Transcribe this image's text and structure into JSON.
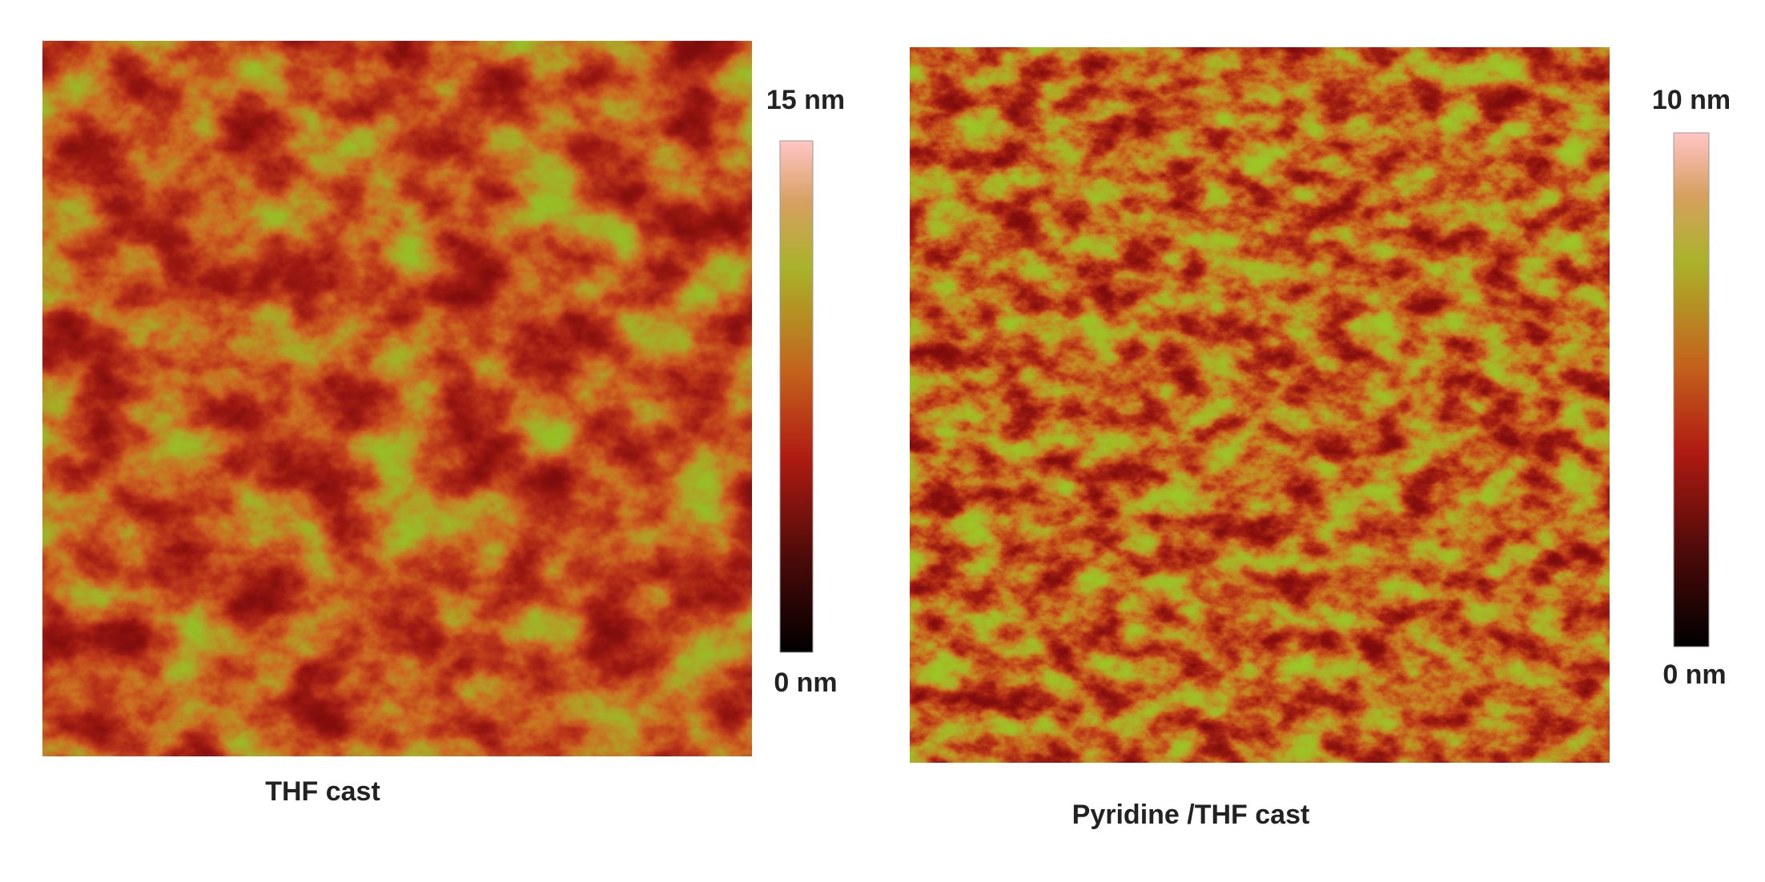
{
  "panels": [
    {
      "scale_max": "15 nm",
      "scale_min": "0 nm",
      "caption": "THF cast"
    },
    {
      "scale_max": "10 nm",
      "scale_min": "0 nm",
      "caption": "Pyridine /THF cast"
    }
  ]
}
